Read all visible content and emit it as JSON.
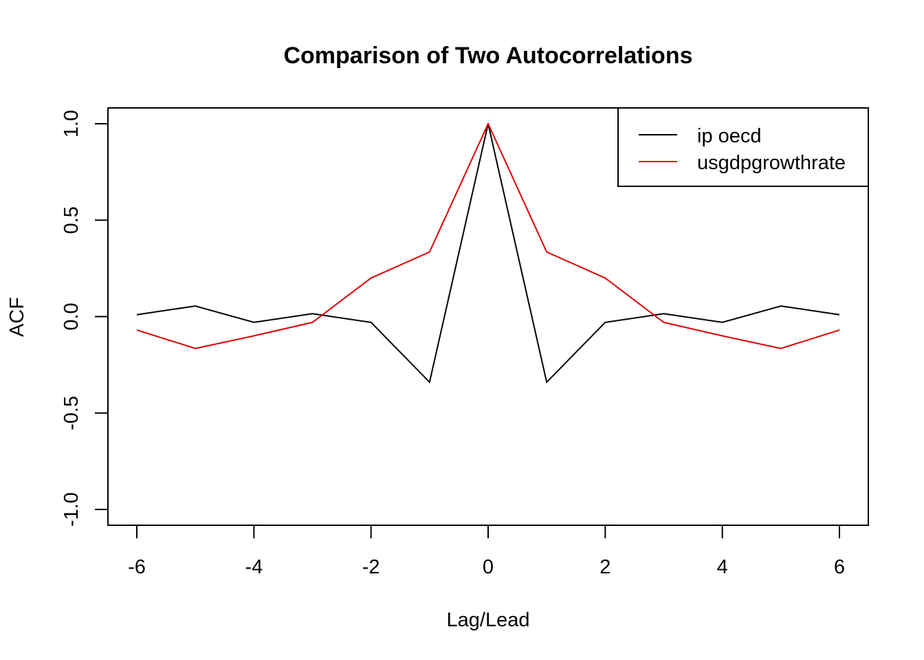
{
  "chart_data": {
    "type": "line",
    "title": "Comparison of Two Autocorrelations",
    "xlabel": "Lag/Lead",
    "ylabel": "ACF",
    "xlim": [
      -6,
      6
    ],
    "ylim": [
      -1,
      1
    ],
    "x_ticks": [
      -6,
      -4,
      -2,
      0,
      2,
      4,
      6
    ],
    "y_ticks": [
      -1.0,
      -0.5,
      0.0,
      0.5,
      1.0
    ],
    "x_tick_labels": [
      "-6",
      "-4",
      "-2",
      "0",
      "2",
      "4",
      "6"
    ],
    "y_tick_labels": [
      "-1.0",
      "-0.5",
      "0.0",
      "0.5",
      "1.0"
    ],
    "grid": false,
    "legend_position": "top-right",
    "x": [
      -6,
      -5,
      -4,
      -3,
      -2,
      -1,
      0,
      1,
      2,
      3,
      4,
      5,
      6
    ],
    "series": [
      {
        "name": "ip oecd",
        "color": "#000000",
        "values": [
          0.01,
          0.055,
          -0.03,
          0.015,
          -0.03,
          -0.34,
          1.0,
          -0.34,
          -0.03,
          0.015,
          -0.03,
          0.055,
          0.01
        ]
      },
      {
        "name": "usgdpgrowthrate",
        "color": "#df0000",
        "values": [
          -0.07,
          -0.165,
          -0.1,
          -0.03,
          0.2,
          0.335,
          1.0,
          0.335,
          0.2,
          -0.03,
          -0.1,
          -0.165,
          -0.07
        ]
      }
    ]
  }
}
